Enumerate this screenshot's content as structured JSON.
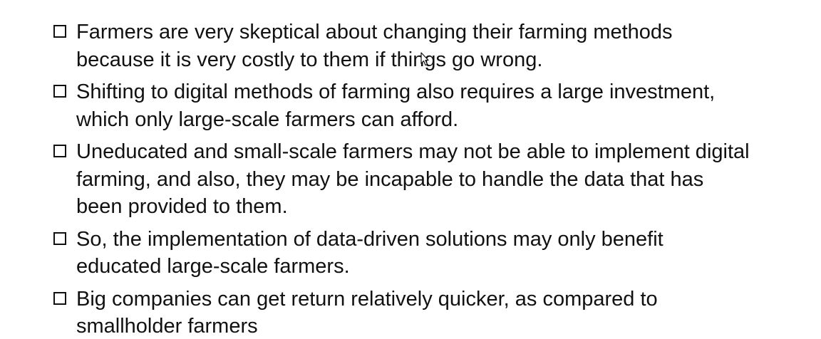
{
  "bullets": [
    {
      "lines": [
        "Farmers are very skeptical about changing their farming methods",
        "because it is very costly to them if things go wrong."
      ]
    },
    {
      "lines": [
        "Shifting to digital methods of farming also requires a large investment,",
        "which only large-scale farmers can afford."
      ]
    },
    {
      "lines": [
        "Uneducated and small-scale farmers may not be able to implement digital",
        "farming, and also, they may be incapable to handle the data that has",
        "been provided to them."
      ]
    },
    {
      "lines": [
        "So, the implementation of data-driven solutions may only benefit",
        "educated large-scale farmers."
      ]
    },
    {
      "lines": [
        "Big companies can get return relatively quicker, as compared to",
        "smallholder farmers"
      ]
    }
  ],
  "icons": {
    "bullet": "checkbox-icon",
    "pointer": "mouse-pointer-icon"
  }
}
